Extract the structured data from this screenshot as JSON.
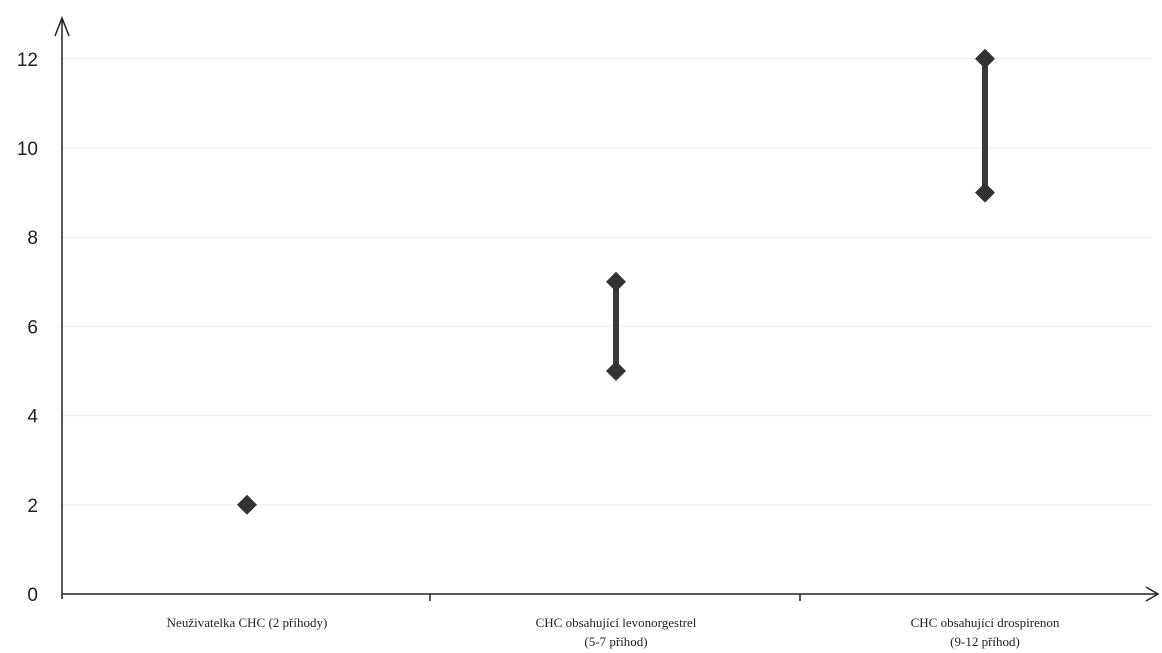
{
  "chart_data": {
    "type": "scatter",
    "title": "",
    "xlabel": "",
    "ylabel": "",
    "ylim": [
      0,
      13
    ],
    "yticks": [
      0,
      2,
      4,
      6,
      8,
      10,
      12
    ],
    "grid": true,
    "categories": [
      [
        "Neuživatelka CHC (2 příhody)"
      ],
      [
        "CHC obsahující levonorgestrel",
        "(5-7 příhod)"
      ],
      [
        "CHC obsahující drospirenon",
        "(9-12 příhod)"
      ]
    ],
    "ranges": [
      {
        "low": 2,
        "high": 2
      },
      {
        "low": 5,
        "high": 7
      },
      {
        "low": 9,
        "high": 12
      }
    ],
    "colors": {
      "marker": "#333333",
      "axis": "#222222",
      "grid": "#ececec"
    }
  }
}
